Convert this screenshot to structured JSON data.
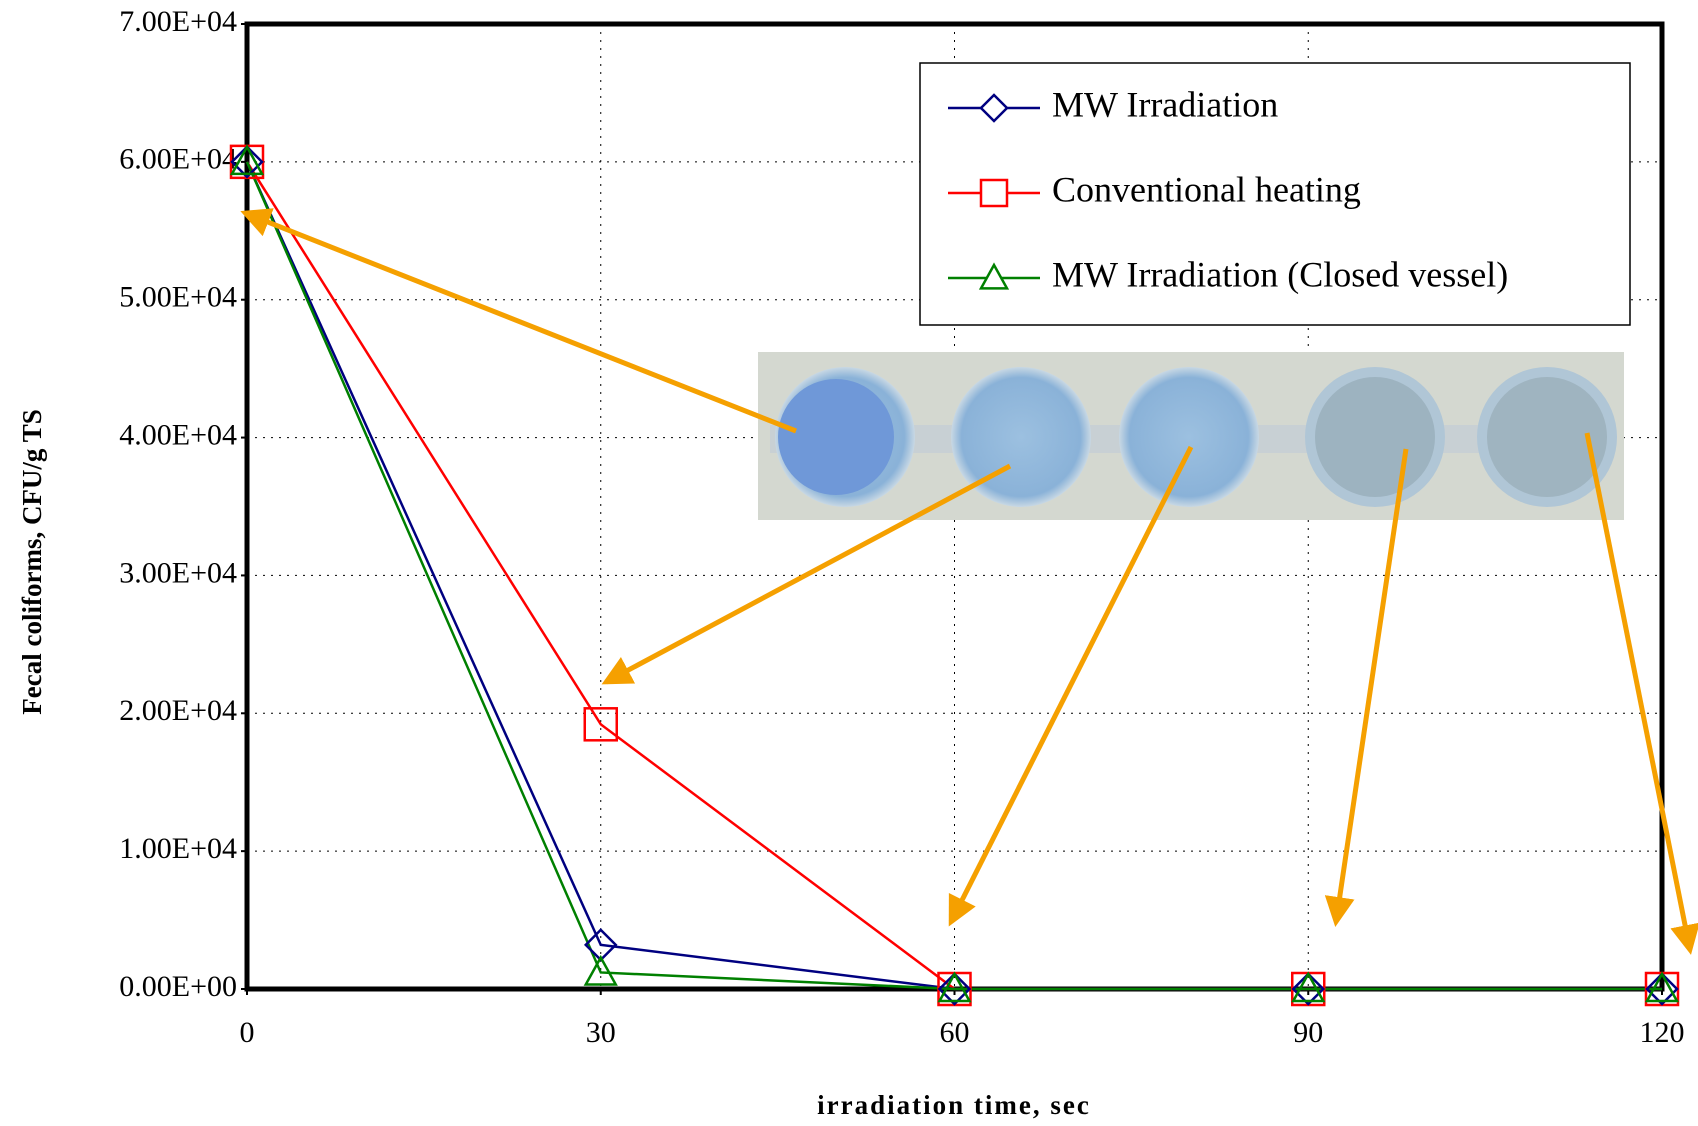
{
  "chart_data": {
    "type": "line",
    "x_label": "irradiation time, sec",
    "y_label": "Fecal coliforms, CFU/g TS",
    "x": [
      0,
      30,
      60,
      90,
      120
    ],
    "xlim": [
      0,
      120
    ],
    "xticks": [
      0,
      30,
      60,
      90,
      120
    ],
    "ylim": [
      0,
      70000
    ],
    "yticks": [
      {
        "value": 0,
        "label": "0.00E+00"
      },
      {
        "value": 10000,
        "label": "1.00E+04"
      },
      {
        "value": 20000,
        "label": "2.00E+04"
      },
      {
        "value": 30000,
        "label": "3.00E+04"
      },
      {
        "value": 40000,
        "label": "4.00E+04"
      },
      {
        "value": 50000,
        "label": "5.00E+04"
      },
      {
        "value": 60000,
        "label": "6.00E+04"
      },
      {
        "value": 70000,
        "label": "7.00E+04"
      }
    ],
    "grid": true,
    "legend_position": "upper right",
    "series": [
      {
        "name": "MW Irradiation",
        "color": "#000080",
        "marker": "diamond",
        "values": [
          60000,
          3200,
          0,
          0,
          0
        ]
      },
      {
        "name": "Conventional heating",
        "color": "#ff0000",
        "marker": "square",
        "values": [
          60000,
          19200,
          0,
          0,
          0
        ]
      },
      {
        "name": "MW Irradiation (Closed vessel)",
        "color": "#008000",
        "marker": "triangle",
        "values": [
          60000,
          1200,
          0,
          0,
          0
        ]
      }
    ]
  }
}
